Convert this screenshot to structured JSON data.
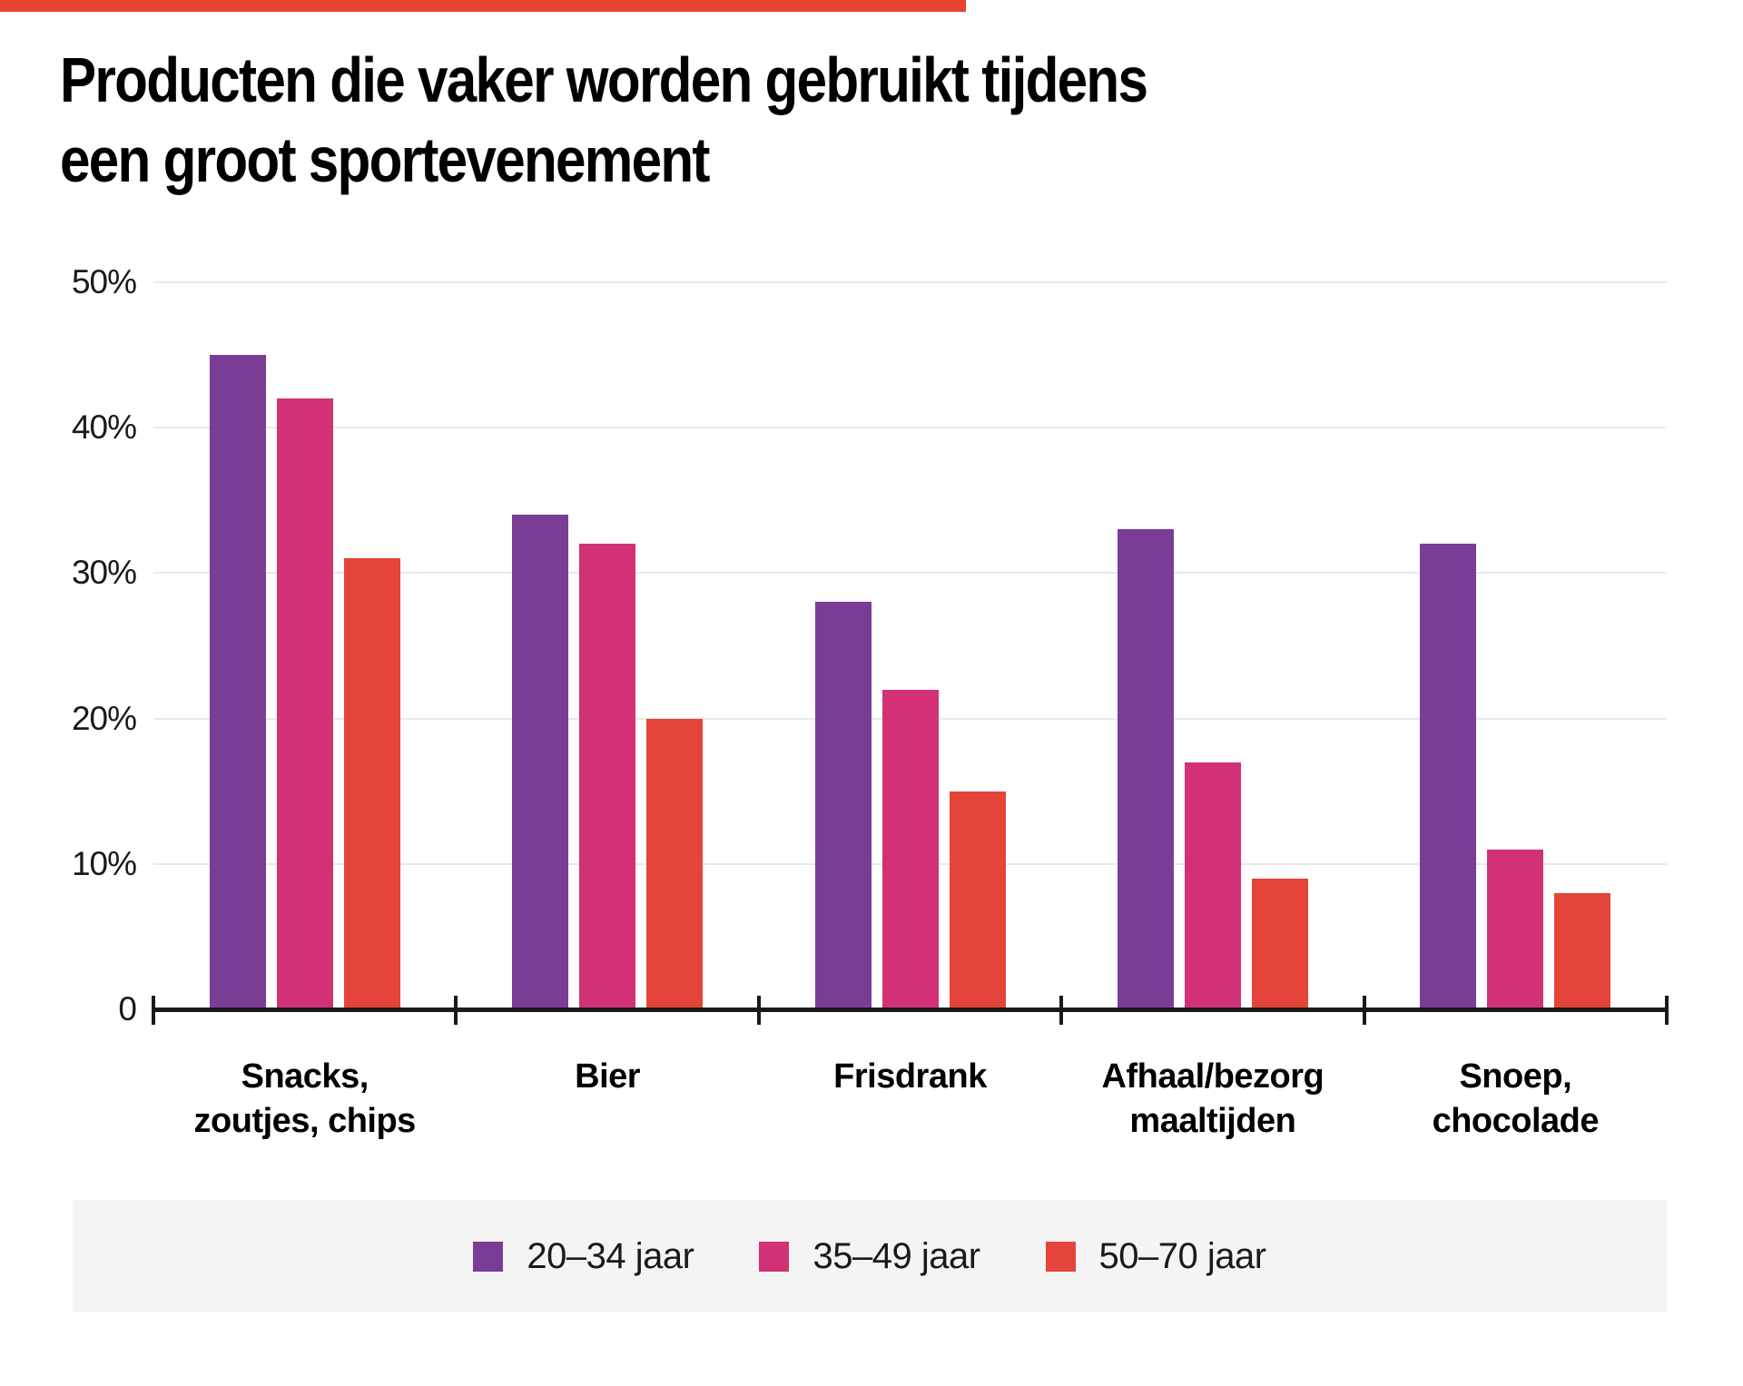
{
  "accent_bar": {
    "color": "#e8432f"
  },
  "title": {
    "line1": "Producten die vaker worden gebruikt tijdens",
    "line2": "een groot sportevenement"
  },
  "chart_data": {
    "type": "bar",
    "title": "Producten die vaker worden gebruikt tijdens een groot sportevenement",
    "categories": [
      {
        "lines": [
          "Snacks,",
          "zoutjes, chips"
        ]
      },
      {
        "lines": [
          "Bier"
        ]
      },
      {
        "lines": [
          "Frisdrank"
        ]
      },
      {
        "lines": [
          "Afhaal/bezorg",
          "maaltijden"
        ]
      },
      {
        "lines": [
          "Snoep,",
          "chocolade"
        ]
      }
    ],
    "series": [
      {
        "name": "20–34 jaar",
        "color": "#7a3d96",
        "values": [
          45,
          34,
          28,
          33,
          32
        ]
      },
      {
        "name": "35–49 jaar",
        "color": "#d23176",
        "values": [
          42,
          32,
          22,
          17,
          11
        ]
      },
      {
        "name": "50–70 jaar",
        "color": "#e44439",
        "values": [
          31,
          20,
          15,
          9,
          8
        ]
      }
    ],
    "y_axis": {
      "unit": "%",
      "min": 0,
      "max": 50,
      "ticks": [
        {
          "value": 50,
          "label": "50%"
        },
        {
          "value": 40,
          "label": "40%"
        },
        {
          "value": 30,
          "label": "30%"
        },
        {
          "value": 20,
          "label": "20%"
        },
        {
          "value": 10,
          "label": "10%"
        },
        {
          "value": 0,
          "label": "0"
        }
      ]
    },
    "grid": true,
    "legend_position": "bottom",
    "colors": {
      "grid": "#e9e9e9",
      "axis": "#1a1a1a",
      "text": "#000000",
      "legend_band": "#f4f4f4"
    }
  }
}
